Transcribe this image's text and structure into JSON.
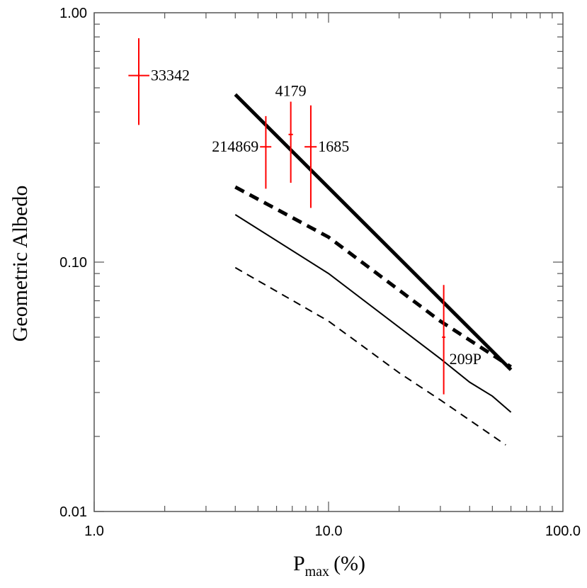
{
  "chart_data": {
    "type": "scatter",
    "title": "",
    "xlabel": "P",
    "xlabel_subscript": "max",
    "xlabel_unit": "(%)",
    "ylabel": "Geometric Albedo",
    "xscale": "log",
    "yscale": "log",
    "xlim": [
      1.0,
      100.0
    ],
    "ylim": [
      0.01,
      1.0
    ],
    "xticks": [
      {
        "value": 1.0,
        "label": "1.0"
      },
      {
        "value": 10.0,
        "label": "10.0"
      },
      {
        "value": 100.0,
        "label": "100.0"
      }
    ],
    "yticks": [
      {
        "value": 0.01,
        "label": "0.01"
      },
      {
        "value": 0.1,
        "label": "0.10"
      },
      {
        "value": 1.0,
        "label": "1.00"
      }
    ],
    "grid": false,
    "points": [
      {
        "name": "33342",
        "x": 1.55,
        "y": 0.56,
        "xerr": [
          1.4,
          1.72
        ],
        "yerr": [
          0.355,
          0.79
        ],
        "label_side": "right"
      },
      {
        "name": "214869",
        "x": 5.4,
        "y": 0.29,
        "xerr": [
          5.1,
          5.7
        ],
        "yerr": [
          0.197,
          0.385
        ],
        "label_side": "left"
      },
      {
        "name": "4179",
        "x": 6.9,
        "y": 0.325,
        "xerr": [
          6.75,
          7.05
        ],
        "yerr": [
          0.208,
          0.44
        ],
        "label_side": "top"
      },
      {
        "name": "1685",
        "x": 8.4,
        "y": 0.29,
        "xerr": [
          7.9,
          8.9
        ],
        "yerr": [
          0.165,
          0.425
        ],
        "label_side": "right"
      },
      {
        "name": "209P",
        "x": 31.0,
        "y": 0.05,
        "xerr": [
          30.5,
          31.5
        ],
        "yerr": [
          0.0295,
          0.081
        ],
        "label_side": "right-below"
      }
    ],
    "series": [
      {
        "name": "thick-solid",
        "style": "solid",
        "width": "thick",
        "x": [
          4.0,
          60.0
        ],
        "y": [
          0.47,
          0.037
        ]
      },
      {
        "name": "thick-dashed",
        "style": "dashed",
        "width": "thick",
        "x": [
          4.0,
          10.0,
          30.0,
          60.0
        ],
        "y": [
          0.2,
          0.126,
          0.058,
          0.038
        ]
      },
      {
        "name": "thin-solid",
        "style": "solid",
        "width": "thin",
        "x": [
          4.0,
          10.0,
          30.0,
          40.0,
          50.0,
          60.0
        ],
        "y": [
          0.155,
          0.09,
          0.041,
          0.033,
          0.029,
          0.025
        ]
      },
      {
        "name": "thin-dashed",
        "style": "dashed",
        "width": "thin",
        "x": [
          4.0,
          10.0,
          20.0,
          30.0,
          57.0
        ],
        "y": [
          0.095,
          0.058,
          0.036,
          0.028,
          0.0185
        ]
      }
    ],
    "colors": {
      "points": "#ff0000",
      "lines": "#000000",
      "axes": "#555555"
    }
  }
}
